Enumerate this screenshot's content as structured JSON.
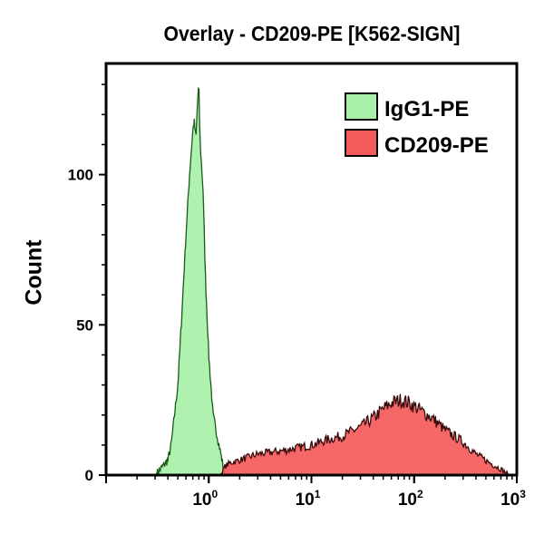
{
  "chart_data": {
    "type": "area",
    "title": "Overlay - CD209-PE [K562-SIGN]",
    "xlabel": "",
    "ylabel": "Count",
    "xscale": "log",
    "xlim": [
      0.1,
      1000
    ],
    "ylim": [
      0,
      137
    ],
    "x_ticks": [
      {
        "value": 1,
        "base": "10",
        "exp": "0"
      },
      {
        "value": 10,
        "base": "10",
        "exp": "1"
      },
      {
        "value": 100,
        "base": "10",
        "exp": "2"
      },
      {
        "value": 1000,
        "base": "10",
        "exp": "3"
      }
    ],
    "y_ticks": [
      {
        "value": 0,
        "label": "0"
      },
      {
        "value": 50,
        "label": "50"
      },
      {
        "value": 100,
        "label": "100"
      }
    ],
    "grid": false,
    "legend_position": "top-right",
    "series": [
      {
        "name": "IgG1-PE",
        "fill": "#a8f0a8",
        "stroke": "#1a5a1a",
        "x": [
          0.3,
          0.32,
          0.4,
          0.43,
          0.5,
          0.54,
          0.6,
          0.65,
          0.7,
          0.72,
          0.75,
          0.78,
          0.8,
          0.82,
          0.88,
          0.93,
          1.0,
          1.1,
          1.26,
          1.4,
          1.45
        ],
        "y": [
          0,
          1,
          5,
          10,
          30,
          50,
          80,
          100,
          115,
          118,
          112,
          125,
          130,
          112,
          95,
          65,
          40,
          20,
          10,
          2,
          0
        ]
      },
      {
        "name": "CD209-PE",
        "fill": "#f55a5a",
        "stroke": "#3a0a0a",
        "x": [
          1.3,
          1.45,
          1.6,
          2,
          3,
          5,
          10,
          15,
          20,
          30,
          40,
          50,
          60,
          75,
          90,
          110,
          150,
          200,
          300,
          400,
          550,
          700,
          850
        ],
        "y": [
          0,
          3,
          4,
          5,
          7,
          8,
          10,
          12,
          13,
          16,
          19,
          22,
          24,
          25,
          24,
          22,
          19,
          15,
          11,
          7,
          4,
          2,
          0
        ]
      }
    ]
  }
}
